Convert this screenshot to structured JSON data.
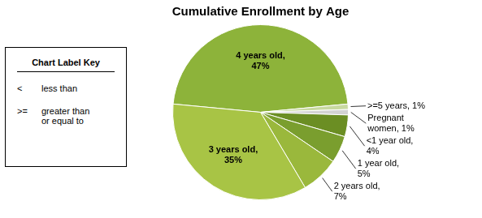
{
  "chart_data": {
    "type": "pie",
    "title": "Cumulative Enrollment by Age",
    "categories": [
      "4 years old,\n47%",
      ">=5 years, 1%",
      "Pregnant\nwomen, 1%",
      "<1 year old,\n4%",
      "1 year old,\n5%",
      "2 years old,\n7%",
      "3 years old,\n35%"
    ],
    "values": [
      47,
      1,
      1,
      4,
      5,
      7,
      35
    ],
    "colors": [
      "#8DB33A",
      "#C8D9A0",
      "#D3D3D3",
      "#6B8E23",
      "#7A9E2E",
      "#9AB83C",
      "#A8C445"
    ],
    "annotations": {
      "title": "Chart Label Key",
      "entries": [
        {
          "symbol": "<",
          "desc": "less than"
        },
        {
          "symbol": ">=",
          "desc": "greater than\nor equal to"
        }
      ]
    }
  }
}
